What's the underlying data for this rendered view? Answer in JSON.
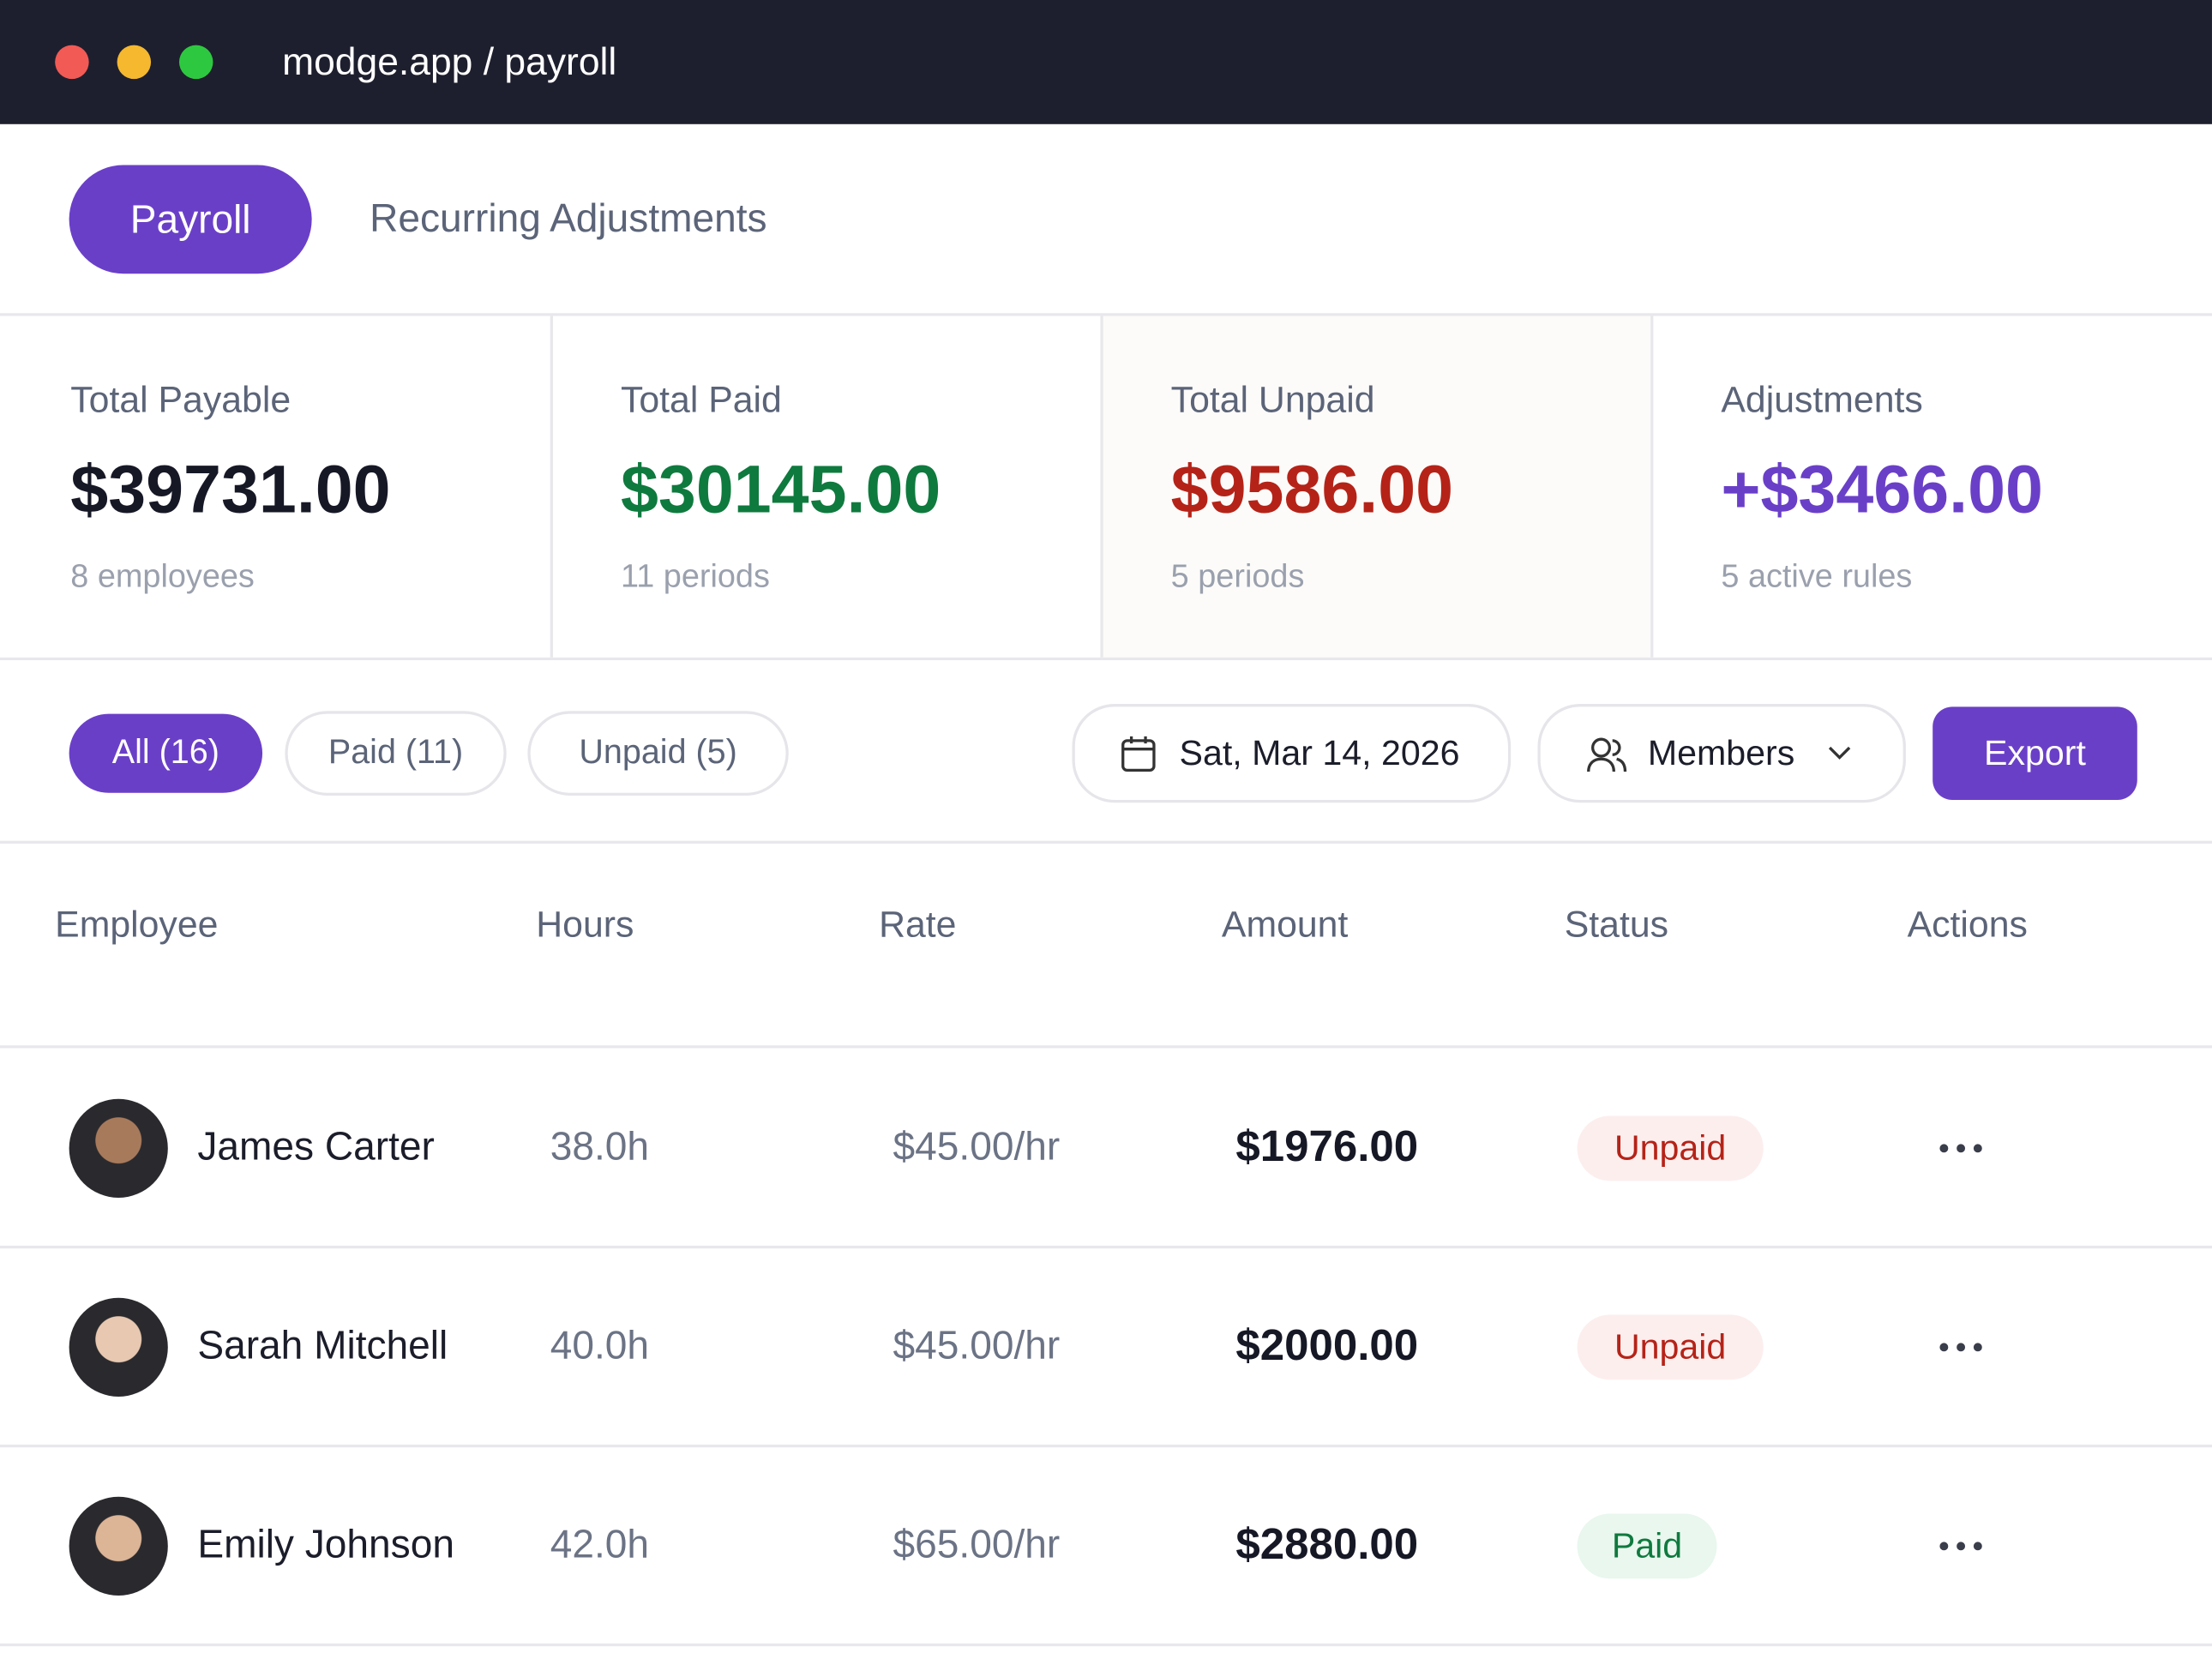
{
  "browser": {
    "url": "modge.app / payroll"
  },
  "tabs": [
    "Payroll",
    "Recurring Adjustments"
  ],
  "stats": [
    {
      "label": "Total Payable",
      "value": "$39731.00",
      "note": "8 employees"
    },
    {
      "label": "Total Paid",
      "value": "$30145.00",
      "note": "11 periods"
    },
    {
      "label": "Total Unpaid",
      "value": "$9586.00",
      "note": "5 periods"
    },
    {
      "label": "Adjustments",
      "value": "+$3466.00",
      "note": "5 active rules"
    }
  ],
  "filters": [
    "All (16)",
    "Paid (11)",
    "Unpaid (5)"
  ],
  "date": "Sat, Mar 14, 2026",
  "members": "Members",
  "export": "Export",
  "table": {
    "headers": [
      "Employee",
      "Hours",
      "Rate",
      "Amount",
      "Status",
      "Actions"
    ],
    "rows": [
      [
        "James Carter",
        "38.0h",
        "$45.00/hr",
        "$1976.00",
        "Unpaid"
      ],
      [
        "Sarah Mitchell",
        "40.0h",
        "$45.00/hr",
        "$2000.00",
        "Unpaid"
      ],
      [
        "Emily Johnson",
        "42.0h",
        "$65.00/hr",
        "$2880.00",
        "Paid"
      ]
    ]
  }
}
